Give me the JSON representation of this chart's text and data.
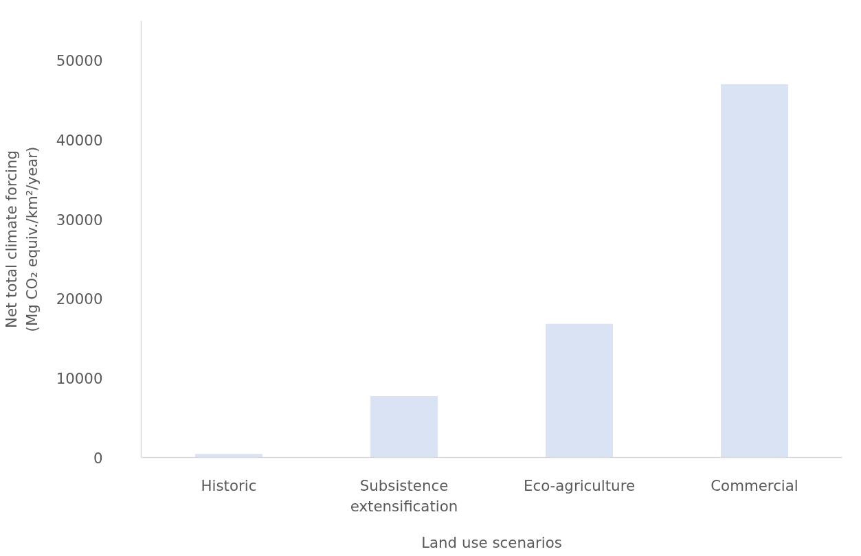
{
  "chart_data": {
    "type": "bar",
    "xlabel": "Land use scenarios",
    "ylabel": "Net total climate forcing\n(Mg CO₂ equiv./km²/year)",
    "categories": [
      "Historic",
      "Subsistence extensification",
      "Eco-agriculture",
      "Commercial"
    ],
    "values": [
      400,
      7700,
      16800,
      47000
    ],
    "color": "#dae3f3",
    "ylim": [
      0,
      55000
    ],
    "yticks": [
      0,
      10000,
      20000,
      30000,
      40000,
      50000
    ],
    "grid": false
  }
}
